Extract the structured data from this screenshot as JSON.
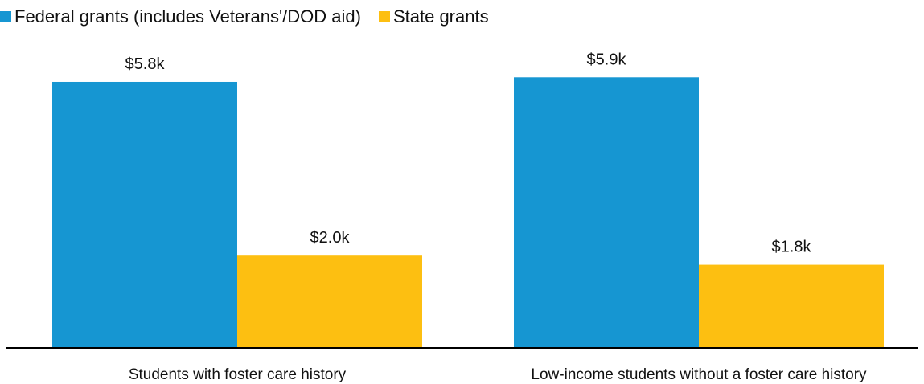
{
  "chart_data": {
    "type": "bar",
    "title": "",
    "xlabel": "",
    "ylabel": "",
    "ylim": [
      0,
      6.5
    ],
    "categories": [
      "Students with foster care history",
      "Low-income students without a foster care history"
    ],
    "series": [
      {
        "name": "Federal grants (includes Veterans'/DOD aid)",
        "color": "#1696d2",
        "values": [
          5.8,
          5.9
        ],
        "labels": [
          "$5.8k",
          "$5.9k"
        ]
      },
      {
        "name": "State grants",
        "color": "#fdbf11",
        "values": [
          2.0,
          1.8
        ],
        "labels": [
          "$2.0k",
          "$1.8k"
        ]
      }
    ],
    "legend_position": "top-left",
    "grid": false
  }
}
